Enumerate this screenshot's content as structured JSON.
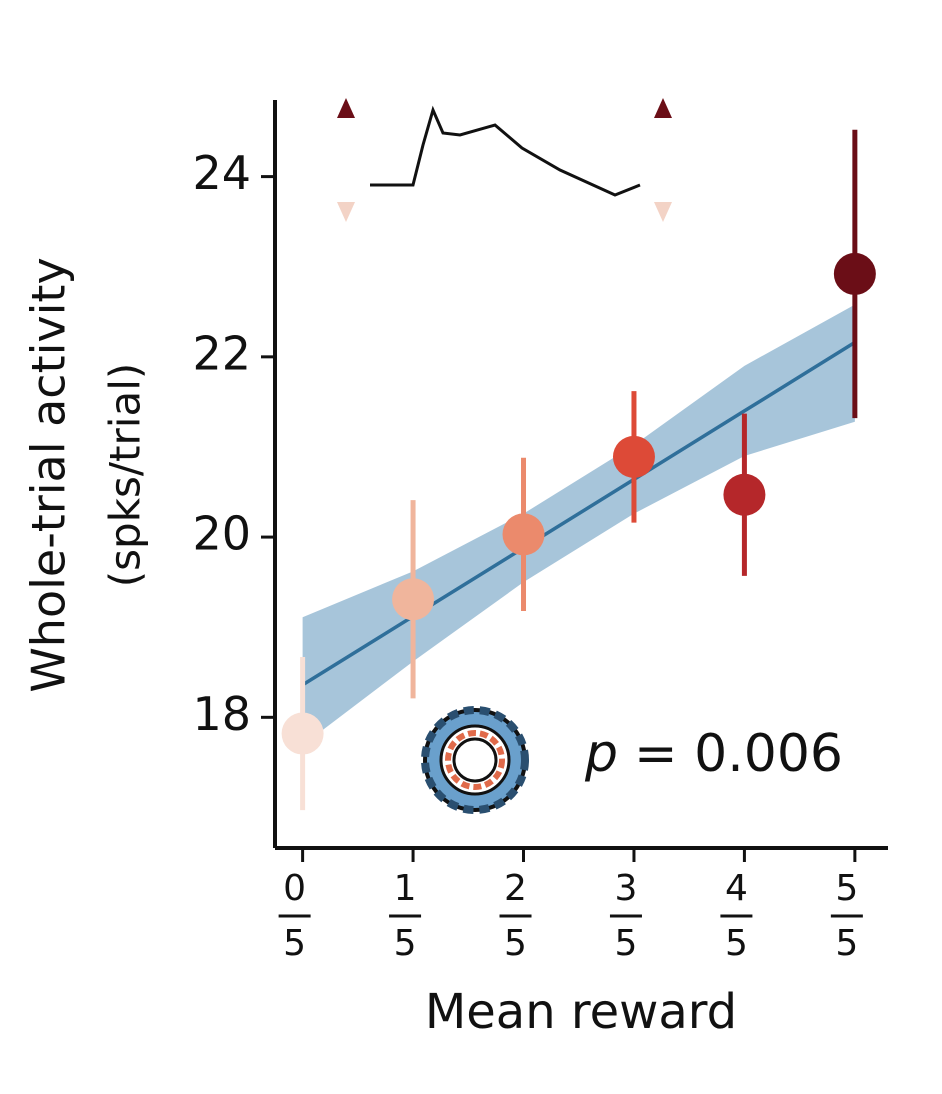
{
  "chart_data": {
    "type": "scatter",
    "ylabel": [
      "Whole-trial activity",
      "(spks/trial)"
    ],
    "xlabel": "Mean reward",
    "annotation": {
      "symbol": "p",
      "text": "= 0.006"
    },
    "x": [
      0,
      1,
      2,
      3,
      4,
      5
    ],
    "values": [
      17.82,
      19.31,
      20.03,
      20.89,
      20.47,
      22.92
    ],
    "errors": [
      0.85,
      1.1,
      0.85,
      0.73,
      0.9,
      1.6
    ],
    "colors": [
      "#f8e0d6",
      "#f0b59c",
      "#eb8a6c",
      "#dd4a37",
      "#b5272a",
      "#6b0e17"
    ],
    "fit": {
      "color": "#2f6f9a",
      "band_color": "#9dbfd6",
      "values": [
        18.36,
        19.12,
        19.88,
        20.64,
        21.4,
        22.16
      ],
      "lower": [
        17.69,
        18.62,
        19.5,
        20.26,
        20.9,
        21.28
      ],
      "upper": [
        19.11,
        19.62,
        20.26,
        21.02,
        21.9,
        22.58
      ]
    },
    "xlim": [
      -0.25,
      5.3
    ],
    "ylim": [
      16.55,
      24.85
    ],
    "xticks": [
      {
        "value": 0,
        "label": [
          "0",
          "5"
        ]
      },
      {
        "value": 1,
        "label": [
          "1",
          "5"
        ]
      },
      {
        "value": 2,
        "label": [
          "2",
          "5"
        ]
      },
      {
        "value": 3,
        "label": [
          "3",
          "5"
        ]
      },
      {
        "value": 4,
        "label": [
          "4",
          "5"
        ]
      },
      {
        "value": 5,
        "label": [
          "5",
          "5"
        ]
      }
    ],
    "yticks": [
      18,
      20,
      22,
      24
    ]
  }
}
